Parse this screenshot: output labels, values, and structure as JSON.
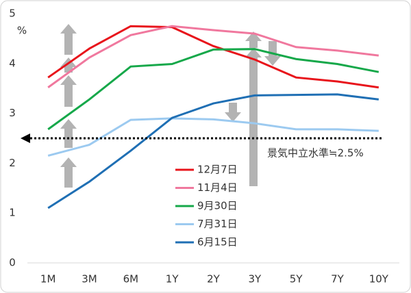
{
  "chart_data": {
    "type": "line",
    "y_unit_label": "%",
    "categories": [
      "1M",
      "3M",
      "6M",
      "1Y",
      "2Y",
      "3Y",
      "5Y",
      "7Y",
      "10Y"
    ],
    "series": [
      {
        "name": "12月7日",
        "color": "#e8141b",
        "values": [
          3.72,
          4.3,
          4.75,
          4.73,
          4.35,
          4.08,
          3.72,
          3.64,
          3.52
        ]
      },
      {
        "name": "11月4日",
        "color": "#f0789e",
        "values": [
          3.52,
          4.12,
          4.57,
          4.75,
          4.67,
          4.6,
          4.33,
          4.26,
          4.16
        ]
      },
      {
        "name": "9月30日",
        "color": "#16a84a",
        "values": [
          2.68,
          3.28,
          3.94,
          3.99,
          4.28,
          4.29,
          4.09,
          3.99,
          3.83
        ]
      },
      {
        "name": "7月31日",
        "color": "#9ccaf0",
        "values": [
          2.15,
          2.37,
          2.87,
          2.9,
          2.88,
          2.8,
          2.68,
          2.68,
          2.65
        ]
      },
      {
        "name": "6月15日",
        "color": "#1f6fb4",
        "values": [
          1.1,
          1.63,
          2.25,
          2.91,
          3.2,
          3.36,
          3.37,
          3.38,
          3.28
        ]
      }
    ],
    "ylim": [
      0,
      5
    ],
    "yticks": [
      0,
      1,
      2,
      3,
      4,
      5
    ],
    "grid": false,
    "reference_line": {
      "value": 2.5,
      "label": "景気中立水準≒2.5%"
    }
  }
}
